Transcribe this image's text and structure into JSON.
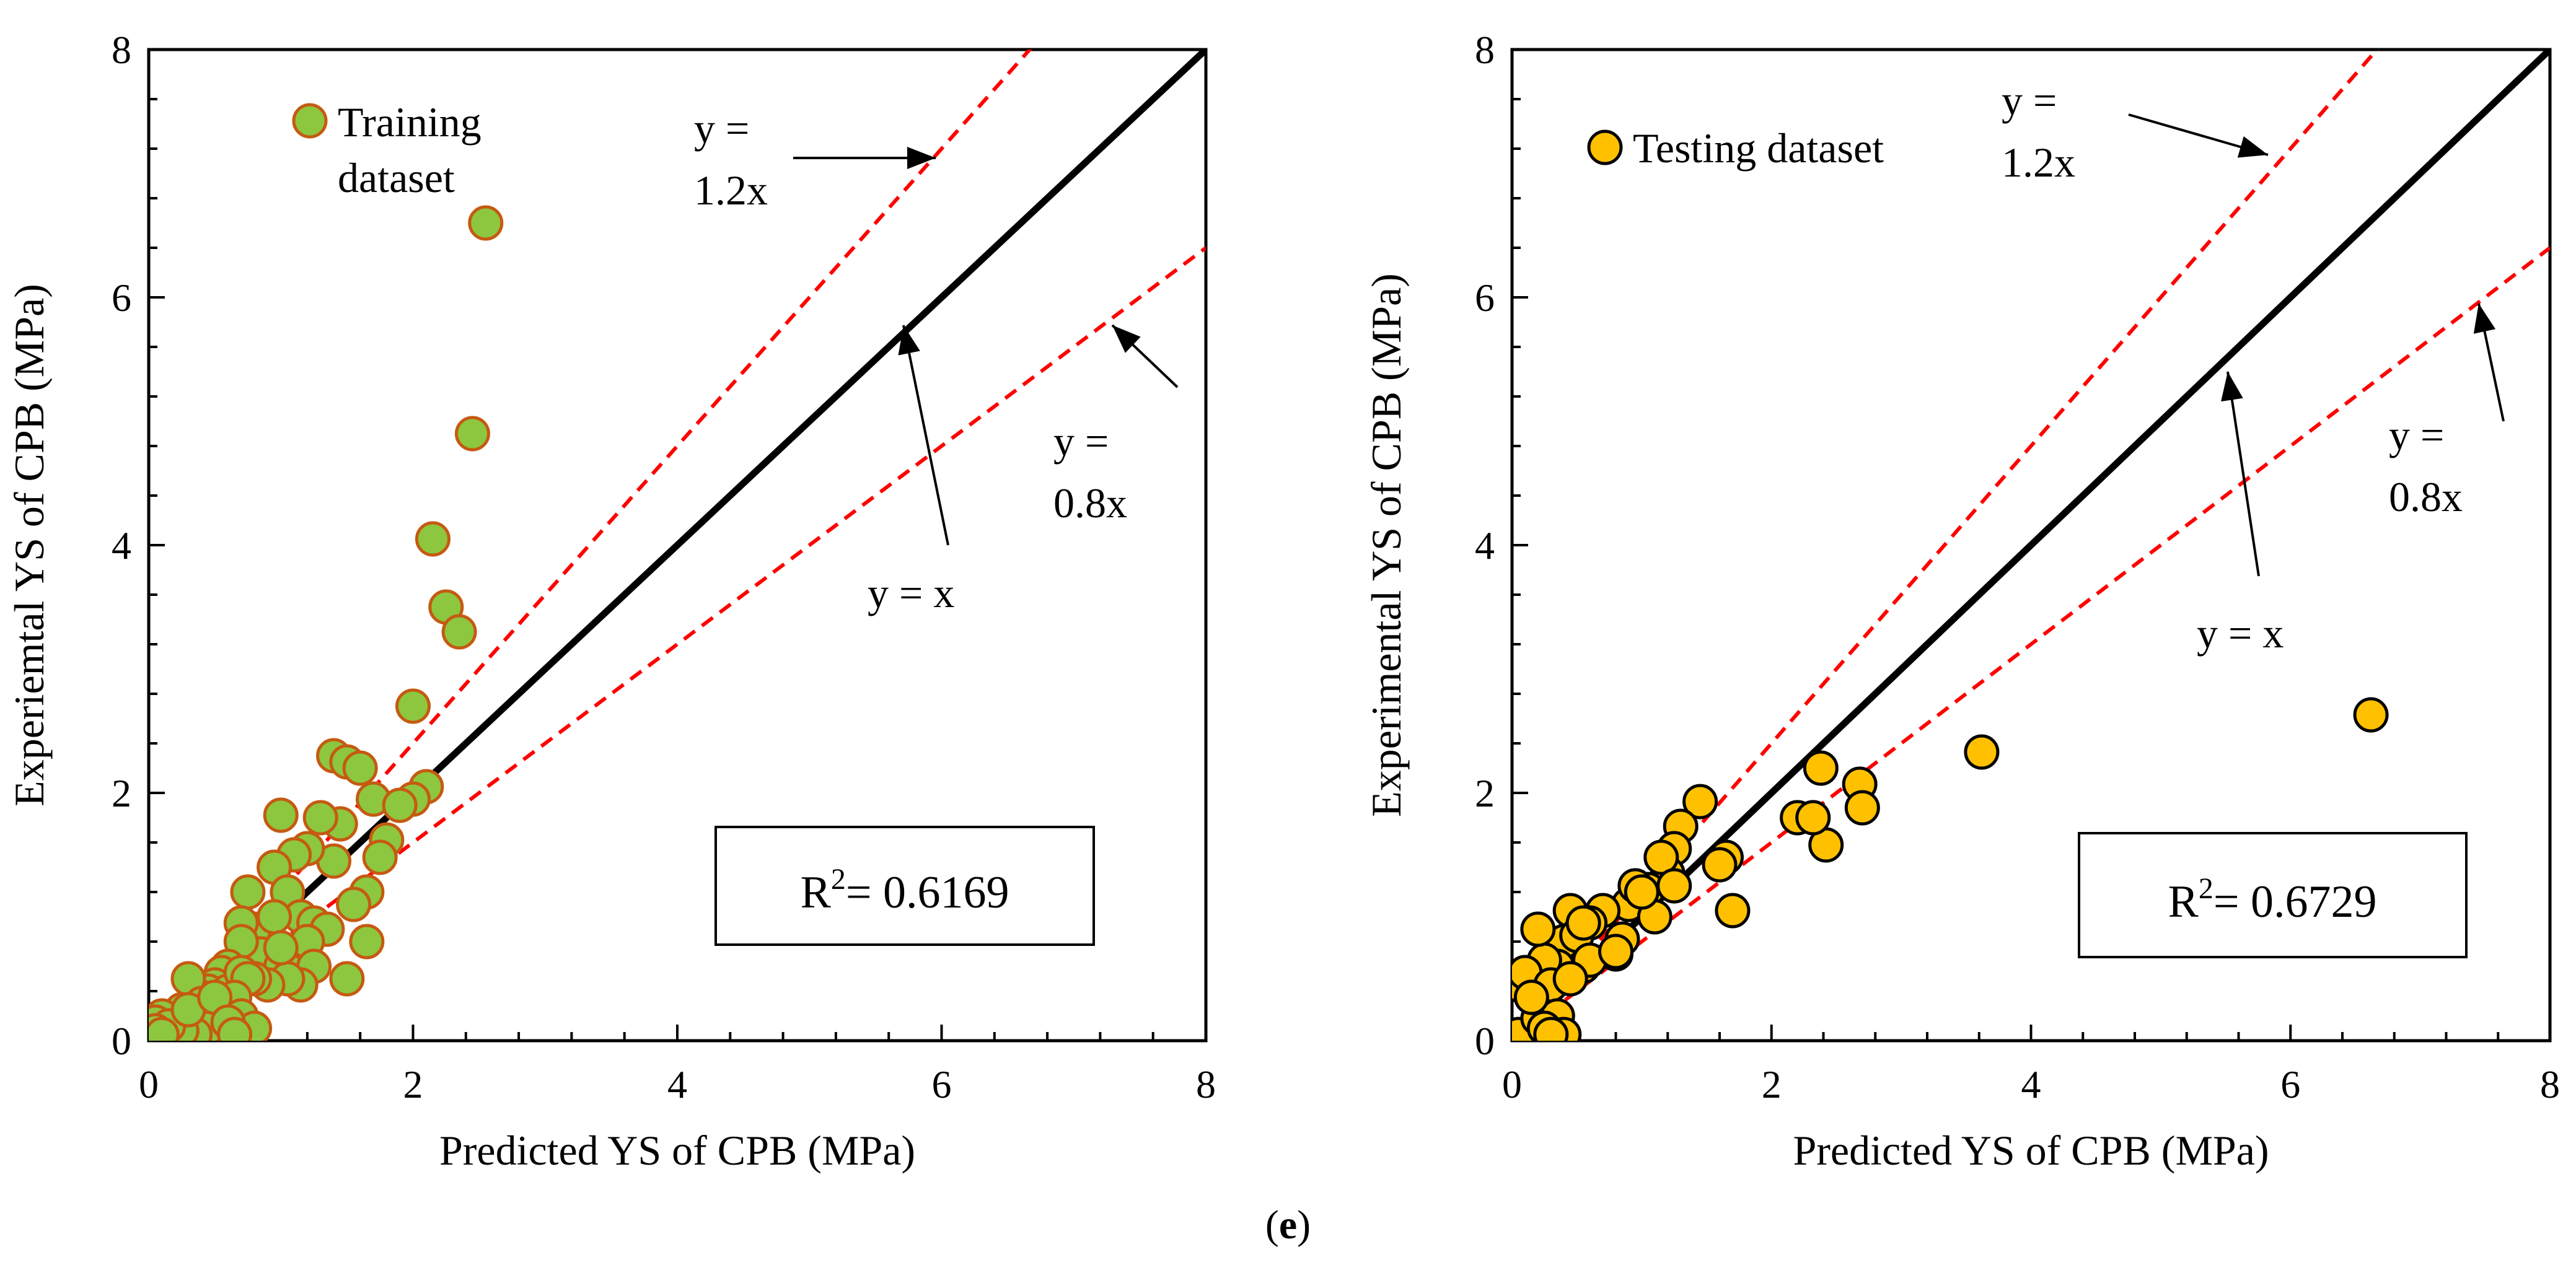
{
  "figure_caption": {
    "open": "(",
    "label": "e",
    "close": ")"
  },
  "colors": {
    "train_fill": "#8dc63f",
    "train_edge": "#c55a11",
    "test_fill": "#ffc000",
    "test_edge": "#000000",
    "bound_line": "#ff0000",
    "identity_line": "#000000"
  },
  "chart_data": [
    {
      "type": "scatter",
      "xlabel": "Predicted YS of CPB (MPa)",
      "ylabel": "Experiemtal YS of CPB (MPa)",
      "xlim": [
        0,
        8
      ],
      "ylim": [
        0,
        8
      ],
      "xticks": [
        "0",
        "2",
        "4",
        "6",
        "8"
      ],
      "yticks": [
        "0",
        "2",
        "4",
        "6",
        "8"
      ],
      "legend": {
        "label_lines": [
          "Training",
          "dataset"
        ],
        "position": "top-left"
      },
      "lines": [
        {
          "name": "y = 1.2x",
          "slope": 1.2,
          "style": "dashed",
          "label_lines": [
            "y =",
            "1.2x"
          ]
        },
        {
          "name": "y = 0.8x",
          "slope": 0.8,
          "style": "dashed",
          "label_lines": [
            "y =",
            "0.8x"
          ]
        },
        {
          "name": "y = x",
          "slope": 1.0,
          "style": "solid",
          "label_lines": [
            "y = x"
          ]
        }
      ],
      "r2_label": {
        "prefix": "R",
        "sup": "2",
        "value": "= 0.6169"
      },
      "series": [
        {
          "name": "Training dataset",
          "x": [
            2.55,
            2.45,
            2.15,
            2.25,
            2.35,
            2.0,
            1.4,
            1.5,
            1.6,
            1.7,
            2.1,
            2.0,
            1.9,
            1.8,
            1.75,
            1.65,
            1.55,
            1.5,
            1.65,
            1.45,
            1.4,
            1.3,
            1.2,
            1.1,
            1.0,
            0.95,
            1.05,
            1.15,
            1.25,
            1.35,
            1.2,
            1.1,
            0.9,
            0.8,
            0.75,
            0.7,
            0.85,
            1.0,
            1.1,
            1.2,
            1.25,
            1.15,
            1.05,
            0.9,
            0.8,
            0.95,
            1.0,
            0.7,
            0.6,
            0.55,
            0.5,
            0.45,
            0.4,
            0.35,
            0.3,
            0.25,
            0.2,
            0.15,
            0.1,
            0.05,
            0.1,
            0.2,
            0.3,
            0.4,
            0.5,
            0.6,
            0.7,
            0.75,
            0.65,
            0.55,
            0.45,
            0.35,
            0.25,
            0.15,
            0.05,
            0.1,
            0.3,
            0.5,
            0.7,
            0.8,
            0.6,
            0.65
          ],
          "y": [
            6.6,
            4.9,
            4.05,
            3.5,
            3.3,
            2.7,
            2.3,
            2.25,
            2.2,
            1.95,
            2.05,
            1.95,
            1.9,
            1.62,
            1.48,
            1.2,
            1.1,
            0.5,
            0.8,
            1.75,
            1.45,
            1.8,
            1.55,
            1.5,
            1.82,
            1.4,
            1.2,
            1.0,
            0.95,
            0.9,
            0.8,
            0.7,
            0.85,
            0.9,
            1.2,
            0.95,
            0.7,
            0.6,
            0.55,
            0.8,
            0.6,
            0.45,
            0.5,
            0.45,
            0.5,
            1.0,
            0.75,
            0.8,
            0.6,
            0.55,
            0.45,
            0.4,
            0.35,
            0.3,
            0.5,
            0.25,
            0.15,
            0.1,
            0.2,
            0.15,
            0.05,
            0.12,
            0.15,
            0.3,
            0.25,
            0.4,
            0.55,
            0.5,
            0.35,
            0.2,
            0.1,
            0.05,
            0.08,
            0.12,
            0.08,
            0.05,
            0.25,
            0.35,
            0.2,
            0.1,
            0.15,
            0.05
          ]
        }
      ]
    },
    {
      "type": "scatter",
      "xlabel": "Predicted YS of CPB (MPa)",
      "ylabel": "Experimental YS of CPB (MPa)",
      "xlim": [
        0,
        8
      ],
      "ylim": [
        0,
        8
      ],
      "xticks": [
        "0",
        "2",
        "4",
        "6",
        "8"
      ],
      "yticks": [
        "0",
        "2",
        "4",
        "6",
        "8"
      ],
      "legend": {
        "label_lines": [
          "Testing dataset"
        ],
        "position": "top-left"
      },
      "lines": [
        {
          "name": "y = 1.2x",
          "slope": 1.2,
          "style": "dashed",
          "label_lines": [
            "y =",
            "1.2x"
          ]
        },
        {
          "name": "y = 0.8x",
          "slope": 0.8,
          "style": "dashed",
          "label_lines": [
            "y =",
            "0.8x"
          ]
        },
        {
          "name": "y = x",
          "slope": 1.0,
          "style": "solid",
          "label_lines": [
            "y = x"
          ]
        }
      ],
      "r2_label": {
        "prefix": "R",
        "sup": "2",
        "value": "= 0.6729"
      },
      "series": [
        {
          "name": "Testing dataset",
          "x": [
            6.62,
            3.62,
            2.68,
            2.7,
            2.38,
            2.42,
            2.2,
            2.32,
            1.45,
            1.3,
            1.25,
            1.2,
            1.05,
            0.95,
            1.15,
            1.7,
            1.65,
            1.6,
            1.0,
            0.9,
            0.85,
            0.8,
            0.7,
            0.55,
            0.6,
            0.45,
            0.4,
            0.35,
            0.3,
            0.25,
            0.2,
            0.05,
            0.05,
            0.1,
            0.2,
            0.3,
            0.35,
            0.4,
            0.5,
            0.6,
            1.25,
            1.1,
            0.15,
            0.25,
            0.3,
            0.45,
            0.55,
            0.8,
            0.95,
            1.0
          ],
          "y": [
            2.63,
            2.33,
            2.07,
            1.88,
            2.2,
            1.58,
            1.8,
            1.8,
            1.93,
            1.73,
            1.55,
            1.35,
            1.22,
            1.15,
            1.48,
            1.05,
            1.48,
            1.42,
            1.2,
            1.1,
            0.82,
            0.7,
            1.05,
            0.6,
            0.95,
            1.05,
            0.8,
            0.6,
            0.5,
            0.65,
            0.9,
            0.45,
            0.05,
            0.55,
            0.18,
            0.45,
            0.2,
            0.05,
            0.85,
            0.65,
            1.25,
            1.0,
            0.35,
            0.1,
            0.05,
            0.5,
            0.95,
            0.72,
            1.25,
            1.2
          ]
        }
      ]
    }
  ]
}
